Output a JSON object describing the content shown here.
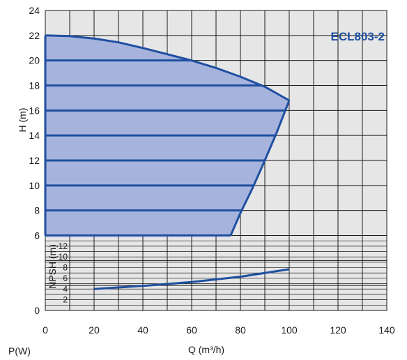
{
  "chart_data": {
    "type": "line",
    "title": "ECL803-2",
    "xlabel": "Q (m³/h)",
    "ylabel": "H (m)",
    "power_label": "P(W)",
    "npsh_label": "NPSH (m)",
    "xlim": [
      0,
      140
    ],
    "ylim": [
      0,
      24
    ],
    "x_ticks": [
      "0",
      "20",
      "40",
      "60",
      "80",
      "100",
      "120",
      "140"
    ],
    "y_ticks": [
      "0",
      "6",
      "8",
      "10",
      "12",
      "14",
      "16",
      "18",
      "20",
      "22",
      "24"
    ],
    "npsh_ticks": [
      "2",
      "4",
      "6",
      "8",
      "10",
      "12"
    ],
    "grid": true,
    "colors": {
      "curve": "#1f4fa0",
      "fill": "#a6b4dd",
      "plot_bg": "#e6e6e6",
      "grid": "#1a1a1a"
    },
    "series": [
      {
        "role": "max-speed-curve",
        "x": [
          0,
          10,
          20,
          30,
          40,
          50,
          60,
          70,
          80,
          90,
          100
        ],
        "y": [
          22,
          21.95,
          21.75,
          21.45,
          21.0,
          20.5,
          20.0,
          19.4,
          18.7,
          17.9,
          16.8
        ]
      },
      {
        "role": "lower-limit-curve",
        "x": [
          100,
          95,
          90,
          85,
          80,
          76
        ],
        "y": [
          16.8,
          14.3,
          12.0,
          9.8,
          7.8,
          6
        ]
      },
      {
        "role": "npsh-curve",
        "x": [
          20,
          40,
          60,
          80,
          100
        ],
        "y": [
          4.0,
          4.6,
          5.3,
          6.3,
          7.7
        ]
      }
    ],
    "speed_lines_h": [
      8,
      10,
      12,
      14,
      16,
      18,
      20,
      22
    ]
  }
}
